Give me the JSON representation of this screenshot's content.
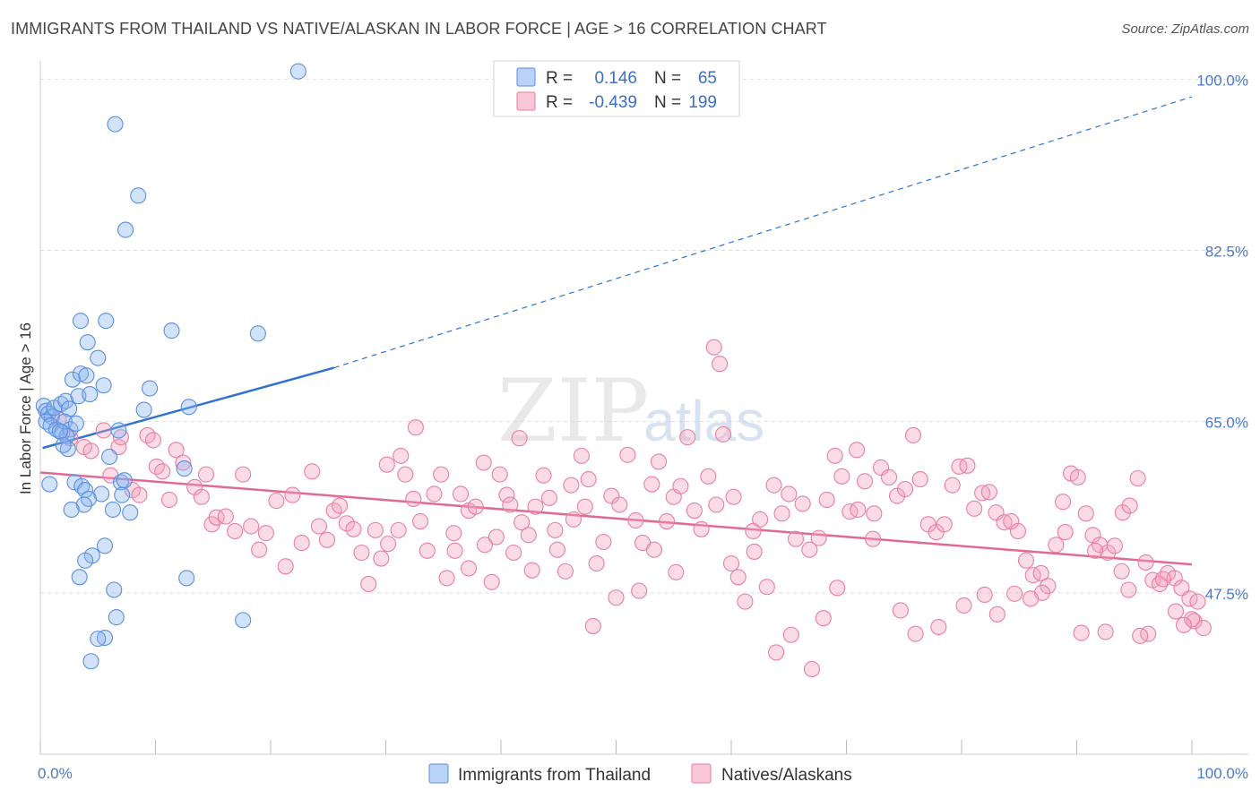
{
  "title": "IMMIGRANTS FROM THAILAND VS NATIVE/ALASKAN IN LABOR FORCE | AGE > 16 CORRELATION CHART",
  "source": "Source: ZipAtlas.com",
  "chart_data": {
    "type": "scatter",
    "ylabel": "In Labor Force | Age > 16",
    "xlim": [
      0,
      100
    ],
    "ylim": [
      31,
      101.5
    ],
    "y_ticks": [
      {
        "value": 100,
        "label": "100.0%"
      },
      {
        "value": 82.5,
        "label": "82.5%"
      },
      {
        "value": 65,
        "label": "65.0%"
      },
      {
        "value": 47.5,
        "label": "47.5%"
      }
    ],
    "x_tick_labels": {
      "left": "0.0%",
      "right": "100.0%"
    },
    "grid": true,
    "legend_position": "top-center",
    "legend": [
      {
        "r_label": "R =",
        "r_value": "0.146",
        "n_label": "N =",
        "n_value": "65",
        "color": "#8ab4f0"
      },
      {
        "r_label": "R =",
        "r_value": "-0.439",
        "n_label": "N =",
        "n_value": "199",
        "color": "#f4a0bb"
      }
    ],
    "series": [
      {
        "name": "Immigrants from Thailand",
        "color": "#8ab4f0",
        "stroke": "#5a8ee0",
        "trend": {
          "x0": 0.2,
          "y0": 62.3,
          "x1": 25.5,
          "y1": 70.5,
          "dash_x1": 100,
          "dash_y1": 98.2,
          "color": "#2f72d0"
        },
        "points": [
          [
            0.3,
            66.6
          ],
          [
            0.5,
            66.1
          ],
          [
            0.7,
            65.8
          ],
          [
            1.0,
            65.5
          ],
          [
            0.5,
            65.0
          ],
          [
            0.9,
            64.6
          ],
          [
            1.4,
            64.2
          ],
          [
            1.9,
            63.9
          ],
          [
            1.2,
            66.4
          ],
          [
            1.8,
            66.8
          ],
          [
            2.2,
            67.1
          ],
          [
            2.5,
            66.3
          ],
          [
            2.1,
            65.0
          ],
          [
            2.6,
            64.2
          ],
          [
            3.1,
            64.8
          ],
          [
            3.3,
            67.6
          ],
          [
            2.3,
            63.5
          ],
          [
            1.7,
            64.0
          ],
          [
            2.4,
            62.2
          ],
          [
            2.8,
            69.3
          ],
          [
            3.5,
            69.9
          ],
          [
            4.0,
            69.7
          ],
          [
            4.3,
            67.8
          ],
          [
            5.0,
            71.5
          ],
          [
            4.1,
            73.1
          ],
          [
            3.5,
            75.3
          ],
          [
            5.7,
            75.3
          ],
          [
            5.5,
            68.7
          ],
          [
            6.0,
            61.4
          ],
          [
            3.0,
            58.8
          ],
          [
            3.6,
            58.4
          ],
          [
            3.9,
            58.0
          ],
          [
            5.3,
            57.6
          ],
          [
            4.2,
            57.1
          ],
          [
            3.8,
            56.5
          ],
          [
            6.3,
            56.0
          ],
          [
            7.0,
            58.8
          ],
          [
            7.8,
            55.7
          ],
          [
            5.6,
            52.3
          ],
          [
            4.5,
            51.3
          ],
          [
            3.9,
            50.8
          ],
          [
            3.4,
            49.1
          ],
          [
            6.4,
            47.8
          ],
          [
            6.6,
            45.0
          ],
          [
            5.6,
            42.9
          ],
          [
            5.0,
            42.8
          ],
          [
            4.4,
            40.5
          ],
          [
            6.5,
            95.4
          ],
          [
            8.5,
            88.1
          ],
          [
            7.4,
            84.6
          ],
          [
            22.4,
            100.8
          ],
          [
            11.4,
            74.3
          ],
          [
            18.9,
            74.0
          ],
          [
            12.9,
            66.5
          ],
          [
            9.5,
            68.4
          ],
          [
            7.3,
            59.0
          ],
          [
            9.0,
            66.2
          ],
          [
            12.7,
            49.0
          ],
          [
            17.6,
            44.7
          ],
          [
            12.5,
            60.2
          ],
          [
            7.1,
            57.5
          ],
          [
            6.8,
            64.1
          ],
          [
            2.0,
            62.6
          ],
          [
            0.8,
            58.6
          ],
          [
            2.7,
            56.0
          ]
        ]
      },
      {
        "name": "Natives/Alaskans",
        "color": "#f4a0bb",
        "stroke": "#e77fa2",
        "trend": {
          "x0": 0,
          "y0": 59.8,
          "x1": 100,
          "y1": 50.4,
          "color": "#e06a95"
        },
        "points": [
          [
            1.6,
            65.2
          ],
          [
            2.6,
            63.3
          ],
          [
            3.8,
            62.4
          ],
          [
            4.4,
            62.0
          ],
          [
            5.5,
            64.1
          ],
          [
            6.1,
            59.5
          ],
          [
            6.8,
            62.4
          ],
          [
            7.0,
            63.4
          ],
          [
            8.0,
            58.0
          ],
          [
            8.6,
            57.5
          ],
          [
            9.3,
            63.6
          ],
          [
            9.8,
            63.1
          ],
          [
            10.1,
            60.4
          ],
          [
            10.6,
            59.9
          ],
          [
            11.2,
            57.0
          ],
          [
            11.8,
            62.1
          ],
          [
            12.4,
            60.8
          ],
          [
            13.4,
            58.3
          ],
          [
            14.0,
            57.3
          ],
          [
            14.4,
            59.6
          ],
          [
            14.9,
            54.5
          ],
          [
            15.3,
            55.2
          ],
          [
            16.1,
            55.3
          ],
          [
            16.9,
            53.8
          ],
          [
            17.6,
            59.6
          ],
          [
            18.3,
            54.3
          ],
          [
            19.0,
            51.9
          ],
          [
            19.6,
            53.6
          ],
          [
            20.5,
            56.9
          ],
          [
            21.3,
            50.2
          ],
          [
            21.9,
            57.5
          ],
          [
            22.7,
            52.6
          ],
          [
            23.6,
            59.9
          ],
          [
            24.2,
            54.3
          ],
          [
            24.9,
            52.9
          ],
          [
            25.5,
            55.9
          ],
          [
            26.0,
            56.4
          ],
          [
            26.6,
            54.6
          ],
          [
            27.2,
            54.0
          ],
          [
            27.9,
            51.6
          ],
          [
            28.5,
            48.4
          ],
          [
            29.1,
            53.9
          ],
          [
            29.6,
            51.0
          ],
          [
            30.2,
            52.5
          ],
          [
            31.1,
            53.9
          ],
          [
            31.7,
            59.6
          ],
          [
            32.4,
            57.1
          ],
          [
            33.0,
            54.8
          ],
          [
            33.6,
            51.8
          ],
          [
            34.2,
            57.6
          ],
          [
            34.8,
            59.6
          ],
          [
            35.3,
            49.0
          ],
          [
            35.9,
            53.6
          ],
          [
            36.5,
            57.6
          ],
          [
            37.2,
            55.9
          ],
          [
            37.8,
            56.3
          ],
          [
            38.6,
            52.4
          ],
          [
            39.2,
            48.6
          ],
          [
            39.9,
            59.6
          ],
          [
            40.5,
            57.5
          ],
          [
            41.1,
            51.6
          ],
          [
            41.8,
            54.7
          ],
          [
            42.4,
            53.4
          ],
          [
            43.0,
            56.3
          ],
          [
            43.7,
            59.5
          ],
          [
            44.2,
            57.2
          ],
          [
            44.9,
            51.9
          ],
          [
            45.6,
            49.7
          ],
          [
            46.3,
            55.0
          ],
          [
            47.0,
            61.5
          ],
          [
            47.6,
            59.1
          ],
          [
            48.3,
            50.5
          ],
          [
            48.9,
            52.7
          ],
          [
            49.6,
            57.4
          ],
          [
            50.3,
            56.5
          ],
          [
            51.0,
            61.6
          ],
          [
            51.7,
            54.9
          ],
          [
            52.3,
            52.6
          ],
          [
            53.1,
            58.6
          ],
          [
            53.7,
            60.9
          ],
          [
            54.4,
            54.8
          ],
          [
            55.0,
            57.3
          ],
          [
            55.6,
            58.4
          ],
          [
            56.2,
            63.4
          ],
          [
            56.8,
            55.9
          ],
          [
            57.4,
            54.0
          ],
          [
            58.0,
            59.4
          ],
          [
            58.7,
            56.5
          ],
          [
            59.3,
            63.7
          ],
          [
            60.0,
            50.5
          ],
          [
            60.6,
            49.1
          ],
          [
            61.2,
            46.6
          ],
          [
            61.9,
            53.8
          ],
          [
            62.5,
            55.0
          ],
          [
            63.1,
            48.1
          ],
          [
            63.7,
            58.5
          ],
          [
            64.4,
            55.6
          ],
          [
            65.0,
            57.6
          ],
          [
            65.6,
            53.0
          ],
          [
            66.2,
            56.6
          ],
          [
            66.8,
            51.9
          ],
          [
            67.6,
            53.1
          ],
          [
            68.3,
            57.0
          ],
          [
            69.0,
            61.5
          ],
          [
            69.6,
            59.4
          ],
          [
            70.3,
            55.8
          ],
          [
            70.9,
            62.1
          ],
          [
            71.6,
            58.9
          ],
          [
            72.3,
            53.0
          ],
          [
            73.0,
            60.3
          ],
          [
            73.7,
            59.3
          ],
          [
            74.4,
            57.4
          ],
          [
            75.1,
            58.1
          ],
          [
            75.8,
            63.6
          ],
          [
            76.4,
            59.1
          ],
          [
            77.1,
            54.5
          ],
          [
            77.8,
            53.7
          ],
          [
            78.5,
            54.5
          ],
          [
            79.2,
            58.5
          ],
          [
            79.8,
            60.4
          ],
          [
            80.5,
            60.5
          ],
          [
            81.1,
            56.1
          ],
          [
            81.8,
            57.7
          ],
          [
            82.4,
            57.8
          ],
          [
            83.0,
            55.7
          ],
          [
            83.7,
            54.7
          ],
          [
            84.3,
            54.8
          ],
          [
            84.9,
            53.8
          ],
          [
            85.6,
            50.8
          ],
          [
            86.2,
            49.3
          ],
          [
            86.9,
            49.5
          ],
          [
            87.5,
            48.2
          ],
          [
            88.2,
            52.4
          ],
          [
            88.8,
            56.8
          ],
          [
            89.5,
            59.7
          ],
          [
            90.1,
            59.3
          ],
          [
            90.8,
            55.6
          ],
          [
            91.4,
            53.4
          ],
          [
            92.0,
            52.4
          ],
          [
            92.7,
            51.6
          ],
          [
            93.3,
            52.3
          ],
          [
            94.0,
            55.7
          ],
          [
            94.6,
            56.4
          ],
          [
            95.3,
            59.2
          ],
          [
            96.0,
            50.6
          ],
          [
            96.6,
            48.8
          ],
          [
            97.2,
            48.4
          ],
          [
            97.9,
            49.5
          ],
          [
            98.5,
            49.0
          ],
          [
            99.1,
            48.0
          ],
          [
            99.8,
            46.9
          ],
          [
            100.2,
            44.6
          ],
          [
            100.5,
            46.6
          ],
          [
            101.0,
            43.9
          ],
          [
            100.0,
            44.8
          ],
          [
            99.3,
            44.2
          ],
          [
            98.6,
            45.6
          ],
          [
            97.5,
            48.9
          ],
          [
            96.2,
            43.3
          ],
          [
            95.5,
            43.1
          ],
          [
            94.5,
            47.8
          ],
          [
            93.9,
            49.7
          ],
          [
            92.5,
            43.5
          ],
          [
            91.6,
            51.8
          ],
          [
            90.4,
            43.4
          ],
          [
            89.0,
            53.7
          ],
          [
            87.0,
            47.5
          ],
          [
            86.0,
            46.9
          ],
          [
            84.6,
            47.4
          ],
          [
            83.1,
            45.3
          ],
          [
            82.0,
            47.3
          ],
          [
            80.2,
            46.2
          ],
          [
            78.0,
            44.0
          ],
          [
            76.0,
            43.3
          ],
          [
            74.7,
            45.7
          ],
          [
            72.4,
            55.6
          ],
          [
            71.0,
            56.0
          ],
          [
            69.2,
            48.0
          ],
          [
            68.0,
            44.9
          ],
          [
            67.0,
            39.7
          ],
          [
            65.2,
            43.2
          ],
          [
            63.9,
            41.4
          ],
          [
            62.0,
            51.7
          ],
          [
            60.2,
            57.3
          ],
          [
            59.0,
            70.9
          ],
          [
            58.5,
            72.6
          ],
          [
            55.2,
            49.6
          ],
          [
            53.3,
            51.9
          ],
          [
            52.0,
            47.7
          ],
          [
            50.0,
            47.0
          ],
          [
            48.0,
            44.1
          ],
          [
            47.3,
            56.3
          ],
          [
            46.1,
            58.5
          ],
          [
            44.7,
            53.9
          ],
          [
            42.7,
            49.8
          ],
          [
            41.6,
            63.3
          ],
          [
            40.8,
            56.5
          ],
          [
            39.6,
            53.2
          ],
          [
            38.5,
            60.8
          ],
          [
            37.2,
            50.0
          ],
          [
            36.0,
            51.8
          ],
          [
            32.6,
            64.4
          ],
          [
            31.3,
            61.5
          ],
          [
            30.1,
            60.6
          ]
        ]
      }
    ]
  },
  "bottom_legend": [
    {
      "label": "Immigrants from Thailand",
      "color": "#8ab4f0"
    },
    {
      "label": "Natives/Alaskans",
      "color": "#f4a0bb"
    }
  ],
  "watermark": {
    "zip": "ZIP",
    "atlas": "atlas"
  }
}
